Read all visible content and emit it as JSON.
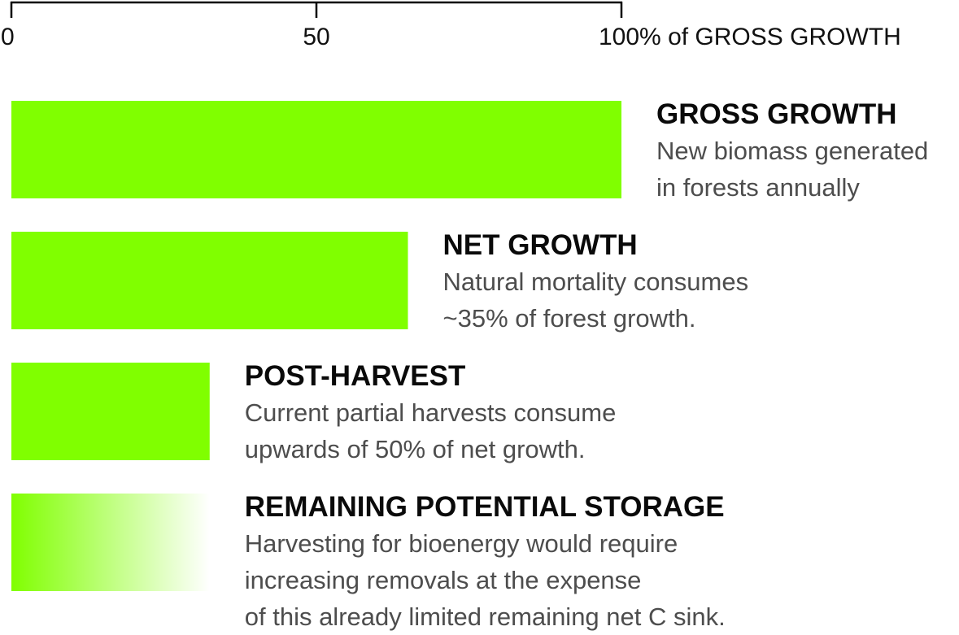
{
  "chart_data": {
    "type": "bar",
    "orientation": "horizontal",
    "axis": {
      "ticks": [
        0,
        50,
        100
      ],
      "tick_labels": [
        "0",
        "50",
        "100% of GROSS GROWTH"
      ],
      "xlim": [
        0,
        100
      ]
    },
    "bars": [
      {
        "title": "GROSS GROWTH",
        "value": 100,
        "fill": "solid",
        "desc_lines": [
          "New biomass generated",
          "in forests annually"
        ]
      },
      {
        "title": "NET GROWTH",
        "value": 65,
        "fill": "solid",
        "desc_lines": [
          "Natural mortality consumes",
          "~35% of forest growth."
        ]
      },
      {
        "title": "POST-HARVEST",
        "value": 32.5,
        "fill": "solid",
        "desc_lines": [
          "Current partial harvests consume",
          "upwards of 50% of net growth."
        ]
      },
      {
        "title": "REMAINING POTENTIAL STORAGE",
        "value": 32.5,
        "fill": "gradient-fade",
        "desc_lines": [
          "Harvesting for bioenergy would require",
          "increasing removals at the expense",
          "of this already limited remaining net C sink."
        ]
      }
    ]
  },
  "colors": {
    "bar": "#80ff00",
    "title": "#0a0a0a",
    "description": "#4d4d4d",
    "axis": "#000000"
  }
}
